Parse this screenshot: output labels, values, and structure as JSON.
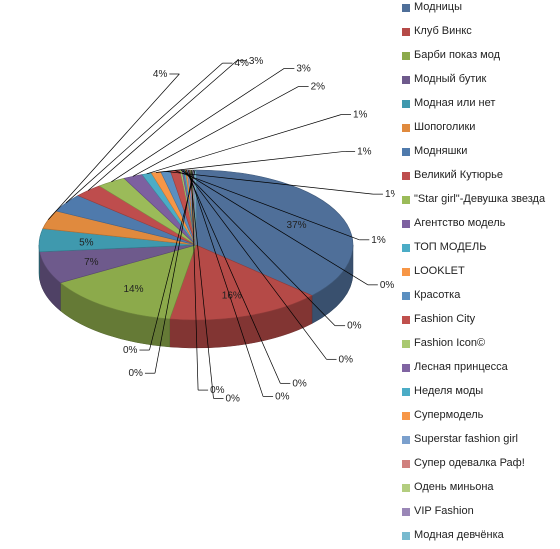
{
  "chart_data": {
    "type": "pie",
    "legend_position": "right",
    "slices": [
      {
        "label": "Модницы",
        "value": 37,
        "color": "#4F6F99"
      },
      {
        "label": "Клуб Винкс",
        "value": 16,
        "color": "#B54A47"
      },
      {
        "label": "Барби показ мод",
        "value": 14,
        "color": "#8CAA4B"
      },
      {
        "label": "Модный бутик",
        "value": 7,
        "color": "#6E5A8C"
      },
      {
        "label": "Модная или нет",
        "value": 5,
        "color": "#3F99AE"
      },
      {
        "label": "Шопоголики",
        "value": 4,
        "color": "#E08A3E"
      },
      {
        "label": "Модняшки",
        "value": 4,
        "color": "#4F7AAC"
      },
      {
        "label": "Великий Кутюрье",
        "value": 3,
        "color": "#BE4D4D"
      },
      {
        "label": "\"Star girl\"-Девушка звезда",
        "value": 3,
        "color": "#9BBB59"
      },
      {
        "label": "Агентство модель",
        "value": 2,
        "color": "#7D60A0"
      },
      {
        "label": "ТОП МОДЕЛЬ",
        "value": 1,
        "color": "#4BACC6"
      },
      {
        "label": "LOOKLET",
        "value": 1,
        "color": "#F79646"
      },
      {
        "label": "Красотка",
        "value": 1,
        "color": "#5B8FC0"
      },
      {
        "label": "Fashion City",
        "value": 1,
        "color": "#C0504D"
      },
      {
        "label": "Fashion Icon©",
        "value": 0,
        "color": "#A9C970"
      },
      {
        "label": "Лесная принцесса",
        "value": 0,
        "color": "#8064A2"
      },
      {
        "label": "Неделя моды",
        "value": 0,
        "color": "#4BACC6"
      },
      {
        "label": "Супермодель",
        "value": 0,
        "color": "#F79646"
      },
      {
        "label": "Superstar fashion girl",
        "value": 0,
        "color": "#7BA0CD"
      },
      {
        "label": "Супер одевалка Раф!",
        "value": 0,
        "color": "#D0807E"
      },
      {
        "label": "Одень миньона",
        "value": 0,
        "color": "#B3CD7F"
      },
      {
        "label": "VIP Fashion",
        "value": 0,
        "color": "#9A87B7"
      },
      {
        "label": "Модная девчёнка",
        "value": 0,
        "color": "#78BACF"
      }
    ]
  }
}
